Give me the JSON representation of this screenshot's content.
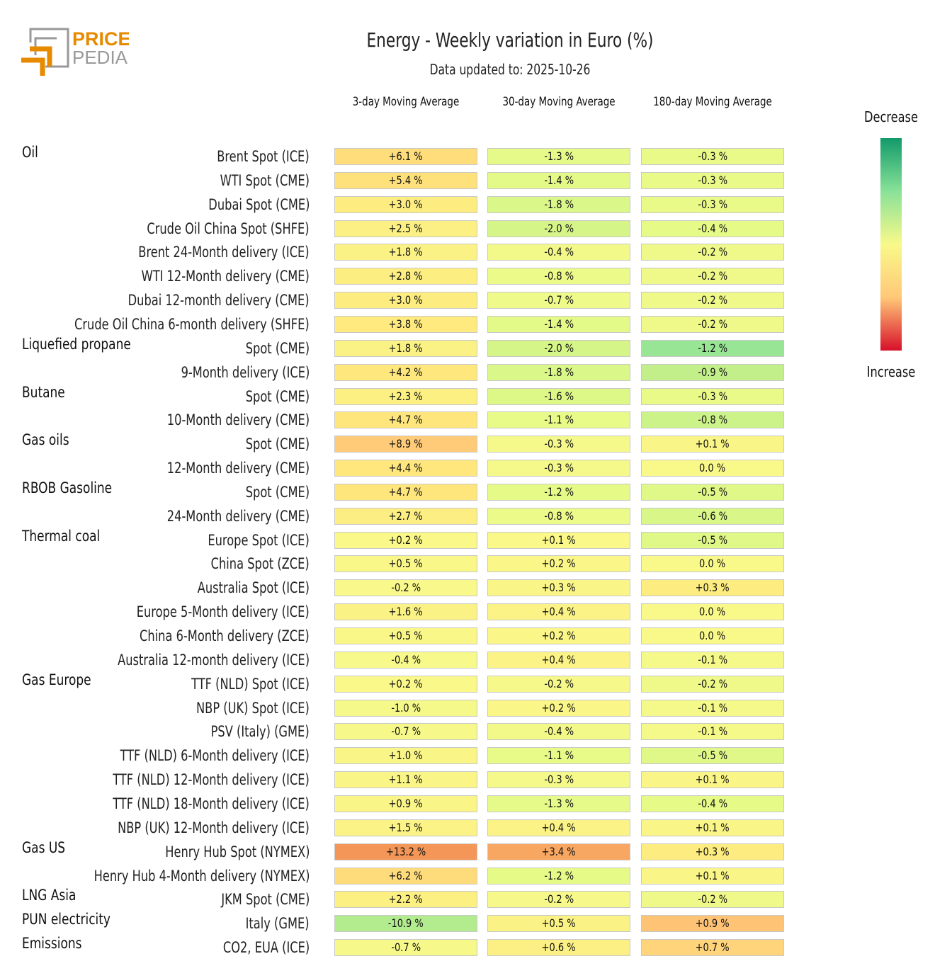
{
  "logo": {
    "text_top": "PRICE",
    "text_bottom": "PEDIA"
  },
  "chart_data": {
    "type": "heatmap",
    "title": "Energy - Weekly variation in Euro (%)",
    "subtitle": "Data updated to: 2025-10-26",
    "columns": [
      "3-day Moving Average",
      "30-day Moving Average",
      "180-day Moving Average"
    ],
    "legend": {
      "top": "Decrease",
      "bottom": "Increase"
    },
    "rows": [
      {
        "group": "Oil",
        "label": "Brent Spot (ICE)",
        "values": [
          6.1,
          -1.3,
          -0.3
        ]
      },
      {
        "group": "",
        "label": "WTI Spot (CME)",
        "values": [
          5.4,
          -1.4,
          -0.3
        ]
      },
      {
        "group": "",
        "label": "Dubai Spot (CME)",
        "values": [
          3.0,
          -1.8,
          -0.3
        ]
      },
      {
        "group": "",
        "label": "Crude Oil China Spot (SHFE)",
        "values": [
          2.5,
          -2.0,
          -0.4
        ]
      },
      {
        "group": "",
        "label": "Brent 24-Month delivery (ICE)",
        "values": [
          1.8,
          -0.4,
          -0.2
        ]
      },
      {
        "group": "",
        "label": "WTI 12-Month delivery (CME)",
        "values": [
          2.8,
          -0.8,
          -0.2
        ]
      },
      {
        "group": "",
        "label": "Dubai 12-month delivery (CME)",
        "values": [
          3.0,
          -0.7,
          -0.2
        ]
      },
      {
        "group": "",
        "label": "Crude Oil China 6-month delivery (SHFE)",
        "values": [
          3.8,
          -1.4,
          -0.2
        ]
      },
      {
        "group": "Liquefied propane",
        "label": "Spot (CME)",
        "values": [
          1.8,
          -2.0,
          -1.2
        ]
      },
      {
        "group": "",
        "label": "9-Month delivery (ICE)",
        "values": [
          4.2,
          -1.8,
          -0.9
        ]
      },
      {
        "group": "Butane",
        "label": "Spot (CME)",
        "values": [
          2.3,
          -1.6,
          -0.3
        ]
      },
      {
        "group": "",
        "label": "10-Month delivery (CME)",
        "values": [
          4.7,
          -1.1,
          -0.8
        ]
      },
      {
        "group": "Gas oils",
        "label": "Spot (CME)",
        "values": [
          8.9,
          -0.3,
          0.1
        ]
      },
      {
        "group": "",
        "label": "12-Month delivery (CME)",
        "values": [
          4.4,
          -0.3,
          0.0
        ]
      },
      {
        "group": "RBOB Gasoline",
        "label": "Spot (CME)",
        "values": [
          4.7,
          -1.2,
          -0.5
        ]
      },
      {
        "group": "",
        "label": "24-Month delivery (CME)",
        "values": [
          2.7,
          -0.8,
          -0.6
        ]
      },
      {
        "group": "Thermal coal",
        "label": "Europe Spot (ICE)",
        "values": [
          0.2,
          0.1,
          -0.5
        ]
      },
      {
        "group": "",
        "label": "China Spot (ZCE)",
        "values": [
          0.5,
          0.2,
          0.0
        ]
      },
      {
        "group": "",
        "label": "Australia Spot (ICE)",
        "values": [
          -0.2,
          0.3,
          0.3
        ]
      },
      {
        "group": "",
        "label": "Europe 5-Month delivery (ICE)",
        "values": [
          1.6,
          0.4,
          0.0
        ]
      },
      {
        "group": "",
        "label": "China 6-Month delivery (ZCE)",
        "values": [
          0.5,
          0.2,
          0.0
        ]
      },
      {
        "group": "",
        "label": "Australia 12-month delivery (ICE)",
        "values": [
          -0.4,
          0.4,
          -0.1
        ]
      },
      {
        "group": "Gas Europe",
        "label": "TTF (NLD) Spot (ICE)",
        "values": [
          0.2,
          -0.2,
          -0.2
        ]
      },
      {
        "group": "",
        "label": "NBP (UK) Spot (ICE)",
        "values": [
          -1.0,
          0.2,
          -0.1
        ]
      },
      {
        "group": "",
        "label": "PSV (Italy) (GME)",
        "values": [
          -0.7,
          -0.4,
          -0.1
        ]
      },
      {
        "group": "",
        "label": "TTF (NLD) 6-Month delivery (ICE)",
        "values": [
          1.0,
          -1.1,
          -0.5
        ]
      },
      {
        "group": "",
        "label": "TTF (NLD) 12-Month delivery (ICE)",
        "values": [
          1.1,
          -0.3,
          0.1
        ]
      },
      {
        "group": "",
        "label": "TTF (NLD) 18-Month delivery (ICE)",
        "values": [
          0.9,
          -1.3,
          -0.4
        ]
      },
      {
        "group": "",
        "label": "NBP (UK) 12-Month delivery (ICE)",
        "values": [
          1.5,
          0.4,
          0.1
        ]
      },
      {
        "group": "Gas US",
        "label": "Henry Hub Spot (NYMEX)",
        "values": [
          13.2,
          3.4,
          0.3
        ]
      },
      {
        "group": "",
        "label": "Henry Hub 4-Month delivery (NYMEX)",
        "values": [
          6.2,
          -1.2,
          0.1
        ]
      },
      {
        "group": "LNG Asia",
        "label": "JKM Spot (CME)",
        "values": [
          2.2,
          -0.2,
          -0.2
        ]
      },
      {
        "group": "PUN electricity",
        "label": "Italy (GME)",
        "values": [
          -10.9,
          0.5,
          0.9
        ]
      },
      {
        "group": "Emissions",
        "label": "CO2, EUA (ICE)",
        "values": [
          -0.7,
          0.6,
          0.7
        ]
      }
    ],
    "colors": {
      "max_increase": "#d8102a",
      "increase": "#f08c50",
      "neutral": "#f9f98a",
      "decrease": "#88e298",
      "max_decrease": "#129a6a"
    }
  }
}
